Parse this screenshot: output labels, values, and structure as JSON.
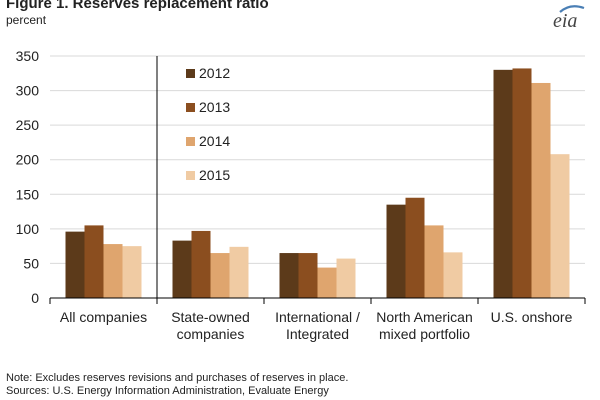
{
  "header": {
    "title": "Figure 1. Reserves replacement ratio",
    "subtitle": "percent",
    "logo_text": "eia"
  },
  "notes": {
    "line1": "Note: Excludes reserves revisions and purchases of reserves in place.",
    "line2": "Sources: U.S. Energy Information Administration, Evaluate Energy"
  },
  "colors": {
    "2012": "#5C3A1A",
    "2013": "#8B4E1F",
    "2014": "#DFA56E",
    "2015": "#F0CBA3",
    "axis": "#000000",
    "grid": "#D9D9D9",
    "logo": "#4A7FB5"
  },
  "chart_data": {
    "type": "bar",
    "title": "Figure 1. Reserves replacement ratio",
    "subtitle": "percent",
    "categories": [
      [
        "All companies"
      ],
      [
        "State-owned",
        "companies"
      ],
      [
        "International /",
        "Integrated"
      ],
      [
        "North American",
        "mixed portfolio"
      ],
      [
        "U.S. onshore"
      ]
    ],
    "series": [
      {
        "name": "2012",
        "values": [
          96,
          83,
          65,
          135,
          330
        ]
      },
      {
        "name": "2013",
        "values": [
          105,
          97,
          65,
          145,
          332
        ]
      },
      {
        "name": "2014",
        "values": [
          78,
          65,
          44,
          105,
          311
        ]
      },
      {
        "name": "2015",
        "values": [
          75,
          74,
          57,
          66,
          208
        ]
      }
    ],
    "ylim": [
      0,
      350
    ],
    "yticks": [
      0,
      50,
      100,
      150,
      200,
      250,
      300,
      350
    ],
    "grid": true,
    "legend": "top-left of plot area",
    "separator_after_category": 0
  }
}
